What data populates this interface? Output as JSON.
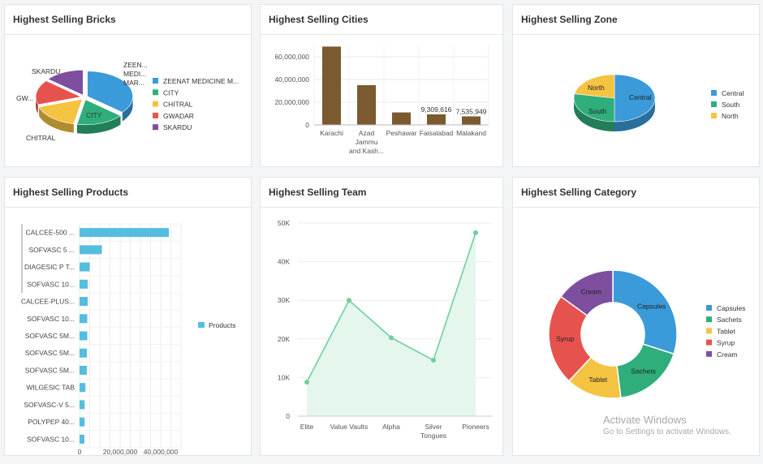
{
  "panels": {
    "bricks": {
      "title": "Highest Selling Bricks"
    },
    "cities": {
      "title": "Highest Selling Cities"
    },
    "zone": {
      "title": "Highest Selling Zone"
    },
    "products": {
      "title": "Highest Selling Products"
    },
    "team": {
      "title": "Highest Selling Team"
    },
    "category": {
      "title": "Highest Selling Category"
    }
  },
  "watermark": {
    "line1": "Activate Windows",
    "line2": "Go to Settings to activate Windows."
  },
  "chart_data": [
    {
      "id": "bricks",
      "type": "pie",
      "title": "Highest Selling Bricks",
      "labels": [
        "ZEENAT MEDICINE M...",
        "CITY",
        "CHITRAL",
        "GWADAR",
        "SKARDU"
      ],
      "slice_labels": [
        "ZEEN... MEDI... MAR...",
        "CITY",
        "CHITRAL",
        "GW...",
        "SKARDU"
      ],
      "values": [
        36,
        17,
        17,
        16,
        14
      ],
      "colors": [
        "#3b9ad9",
        "#2fae7b",
        "#f5c342",
        "#e6534f",
        "#7d4f9e"
      ],
      "legend_position": "right"
    },
    {
      "id": "cities",
      "type": "bar",
      "title": "Highest Selling Cities",
      "categories": [
        "Karachi",
        "Azad Jammu and Kash...",
        "Peshawar",
        "Faisalabad",
        "Malakand"
      ],
      "category_lines": [
        [
          "Karachi"
        ],
        [
          "Azad",
          "Jammu",
          "and Kash..."
        ],
        [
          "Peshawar"
        ],
        [
          "Faisalabad"
        ],
        [
          "Malakand"
        ]
      ],
      "values": [
        69000000,
        35000000,
        11000000,
        9309616,
        7535949
      ],
      "data_labels": [
        "",
        "",
        "",
        "9,309,616",
        "7,535,949"
      ],
      "yticks": [
        "0",
        "20,000,000",
        "40,000,000",
        "60,000,000"
      ],
      "ytick_values": [
        0,
        20000000,
        40000000,
        60000000
      ],
      "ylim": [
        0,
        70000000
      ],
      "color": "#7b5a30",
      "grid": true
    },
    {
      "id": "zone",
      "type": "pie",
      "title": "Highest Selling Zone",
      "labels": [
        "Central",
        "South",
        "North"
      ],
      "values": [
        50,
        28,
        22
      ],
      "colors": [
        "#3b9ad9",
        "#2fae7b",
        "#f5c342"
      ],
      "legend_position": "right"
    },
    {
      "id": "products",
      "type": "bar",
      "orientation": "horizontal",
      "title": "Highest Selling Products",
      "categories": [
        "CALCEE-500 ...",
        "SOFVASC 5 ...",
        "DIAGESIC P T...",
        "SOFVASC 10...",
        "CALCEE-PLUS...",
        "SOFVASC 10...",
        "SOFVASC 5M...",
        "SOFVASC 5M...",
        "SOFVASC 5M...",
        "WILGESIC TAB",
        "SOFVASC-V 5...",
        "POLYPEP 40...",
        "SOFVASC 10..."
      ],
      "series": [
        {
          "name": "Products",
          "values": [
            44000000,
            11000000,
            5000000,
            4000000,
            4000000,
            3800000,
            3800000,
            3600000,
            3600000,
            2900000,
            2500000,
            2500000,
            2400000
          ]
        }
      ],
      "xticks": [
        "0",
        "20,000,000",
        "40,000,000"
      ],
      "xtick_values": [
        0,
        20000000,
        40000000
      ],
      "xlim": [
        0,
        50000000
      ],
      "color": "#55bde0",
      "legend_position": "right",
      "grid": true
    },
    {
      "id": "team",
      "type": "area",
      "title": "Highest Selling Team",
      "categories": [
        "Elite",
        "Value Vaults",
        "Alpha",
        "Silver Tongues",
        "Pioneers"
      ],
      "category_lines": [
        [
          "Elite"
        ],
        [
          "Value Vaults"
        ],
        [
          "Alpha"
        ],
        [
          "Silver",
          "Tongues"
        ],
        [
          "Pioneers"
        ]
      ],
      "values": [
        8800,
        30000,
        20300,
        14500,
        47500
      ],
      "yticks": [
        "0",
        "10K",
        "20K",
        "30K",
        "40K",
        "50K"
      ],
      "ytick_values": [
        0,
        10000,
        20000,
        30000,
        40000,
        50000
      ],
      "ylim": [
        0,
        50000
      ],
      "color": "#6fcf9f",
      "fill": "#e5f6ec",
      "grid": true
    },
    {
      "id": "category",
      "type": "pie",
      "subtype": "donut",
      "title": "Highest Selling Category",
      "labels": [
        "Capsules",
        "Sachets",
        "Tablet",
        "Syrup",
        "Cream"
      ],
      "values": [
        30,
        18,
        14,
        23,
        15
      ],
      "colors": [
        "#3b9ad9",
        "#2fae7b",
        "#f5c342",
        "#e6534f",
        "#7d4f9e"
      ],
      "legend_position": "right"
    }
  ]
}
